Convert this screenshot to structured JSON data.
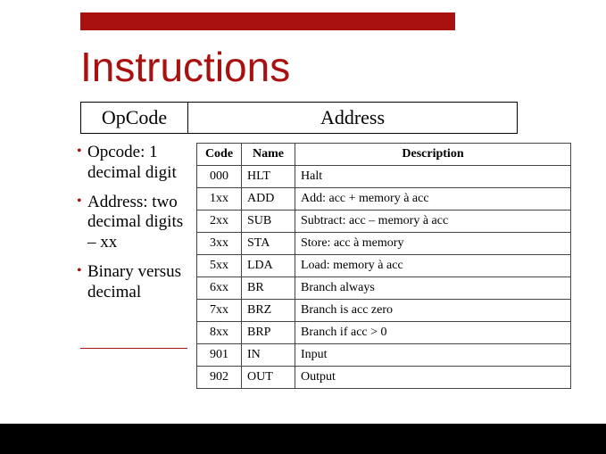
{
  "accent_color": "#a91010",
  "title": "Instructions",
  "header": {
    "col1": "OpCode",
    "col2": "Address"
  },
  "bullets": [
    "Opcode: 1 decimal digit",
    "Address: two decimal digits – xx",
    "Binary versus decimal"
  ],
  "table": {
    "columns": [
      "Code",
      "Name",
      "Description"
    ],
    "rows": [
      [
        "000",
        "HLT",
        "Halt"
      ],
      [
        "1xx",
        "ADD",
        "Add: acc + memory à acc"
      ],
      [
        "2xx",
        "SUB",
        "Subtract: acc – memory à acc"
      ],
      [
        "3xx",
        "STA",
        "Store: acc à memory"
      ],
      [
        "5xx",
        "LDA",
        "Load: memory à acc"
      ],
      [
        "6xx",
        "BR",
        "Branch always"
      ],
      [
        "7xx",
        "BRZ",
        "Branch is acc zero"
      ],
      [
        "8xx",
        "BRP",
        "Branch if acc > 0"
      ],
      [
        "901",
        "IN",
        "Input"
      ],
      [
        "902",
        "OUT",
        "Output"
      ]
    ]
  }
}
